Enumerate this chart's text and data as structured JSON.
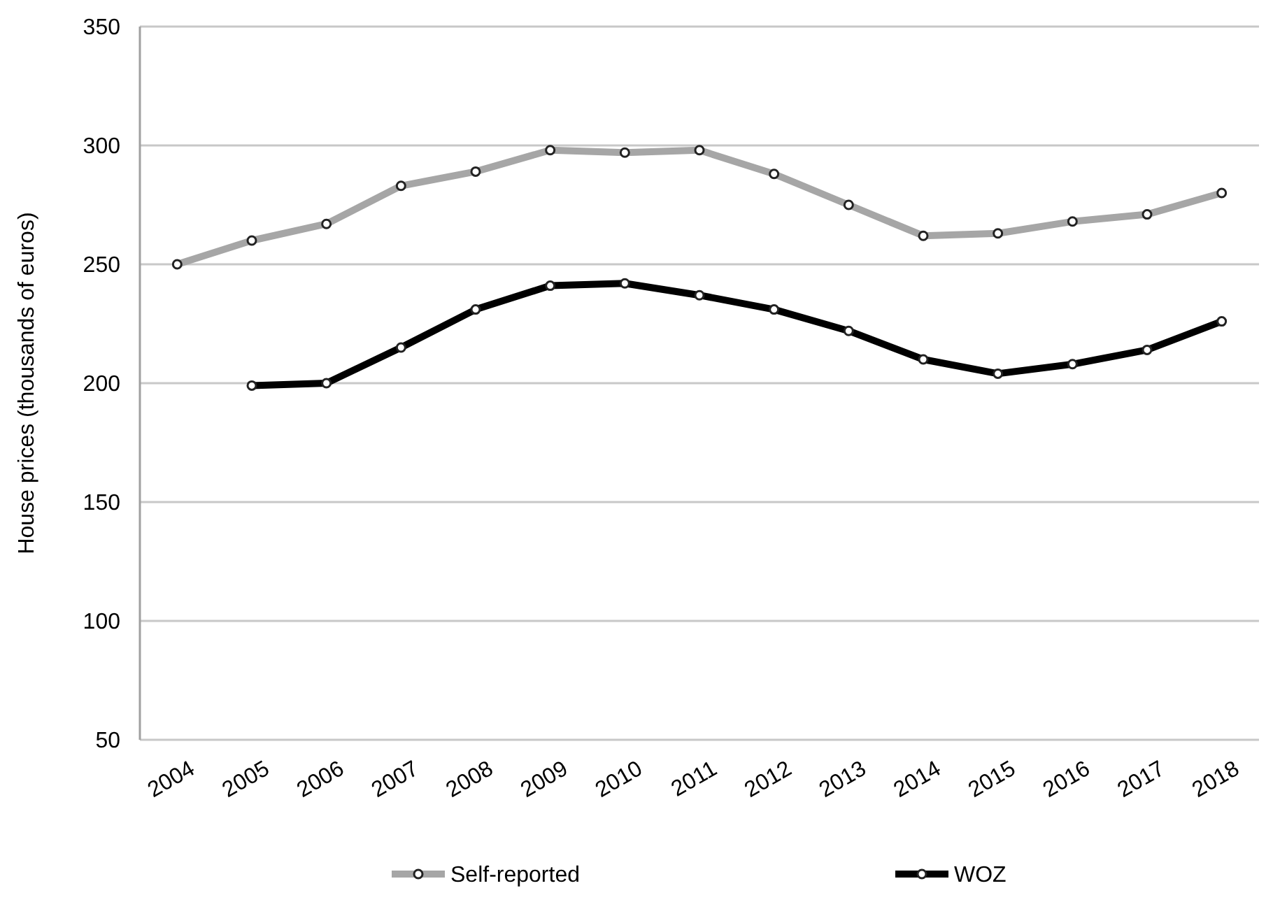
{
  "chart_data": {
    "type": "line",
    "ylabel": "House prices (thousands of euros)",
    "categories": [
      "2004",
      "2005",
      "2006",
      "2007",
      "2008",
      "2009",
      "2010",
      "2011",
      "2012",
      "2013",
      "2014",
      "2015",
      "2016",
      "2017",
      "2018"
    ],
    "series": [
      {
        "name": "Self-reported",
        "color": "#a6a6a6",
        "values": [
          250,
          260,
          267,
          283,
          289,
          298,
          297,
          298,
          288,
          275,
          262,
          263,
          268,
          271,
          280
        ]
      },
      {
        "name": "WOZ",
        "color": "#000000",
        "values": [
          null,
          199,
          200,
          215,
          231,
          241,
          242,
          237,
          231,
          222,
          210,
          204,
          208,
          214,
          226
        ]
      }
    ],
    "ylim": [
      50,
      350
    ],
    "yticks": [
      50,
      100,
      150,
      200,
      250,
      300,
      350
    ],
    "grid": "y",
    "legend": "bottom",
    "marker": "circle",
    "line_style": "solid"
  }
}
